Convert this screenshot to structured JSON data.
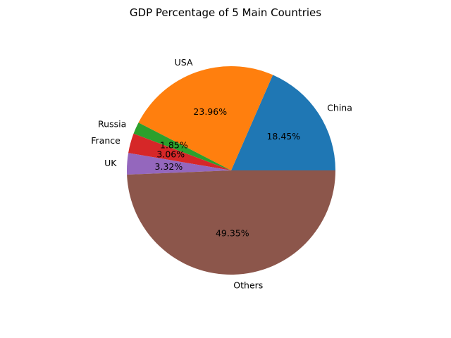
{
  "chart_data": {
    "type": "pie",
    "title": "GDP Percentage of 5 Main Countries",
    "categories": [
      "China",
      "USA",
      "Russia",
      "France",
      "UK",
      "Others"
    ],
    "values": [
      18.45,
      23.96,
      1.85,
      3.06,
      3.32,
      49.35
    ],
    "data_labels": [
      "18.45%",
      "23.96%",
      "1.85%",
      "3.06%",
      "3.32%",
      "49.35%"
    ],
    "colors": [
      "#1f77b4",
      "#ff7f0e",
      "#2ca02c",
      "#d62728",
      "#9467bd",
      "#8c564b"
    ],
    "start_angle_deg": 0,
    "direction": "counterclockwise"
  }
}
